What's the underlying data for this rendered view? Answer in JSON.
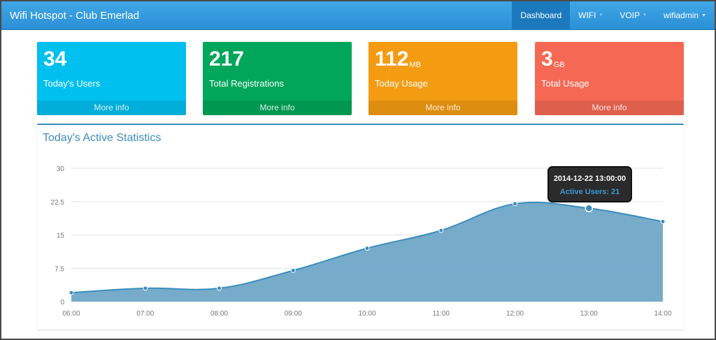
{
  "app": {
    "title": "Wifi Hotspot - Club Emerlad"
  },
  "nav": {
    "items": [
      {
        "label": "Dashboard",
        "active": true
      },
      {
        "label": "WIFI"
      },
      {
        "label": "VOIP"
      },
      {
        "label": "wifiadmin"
      }
    ]
  },
  "stats": [
    {
      "value": "34",
      "unit": "",
      "label": "Today's Users",
      "link": "More info",
      "color": "#00c0ef"
    },
    {
      "value": "217",
      "unit": "",
      "label": "Total Registrations",
      "link": "More info",
      "color": "#00a65a"
    },
    {
      "value": "112",
      "unit": "MB",
      "label": "Today Usage",
      "link": "More info",
      "color": "#f39c12"
    },
    {
      "value": "3",
      "unit": "GB",
      "label": "Total Usage",
      "link": "More info",
      "color": "#f56954"
    }
  ],
  "panel": {
    "title": "Today's Active Statistics"
  },
  "tooltip": {
    "date": "2014-12-22 13:00:00",
    "text": "Active Users: 21"
  },
  "chart_data": {
    "type": "area",
    "x": [
      "06:00",
      "07:00",
      "08:00",
      "09:00",
      "10:00",
      "11:00",
      "12:00",
      "13:00",
      "14:00"
    ],
    "series": [
      {
        "name": "Active Users",
        "values": [
          2,
          3,
          3,
          7,
          12,
          16,
          22,
          21,
          18
        ],
        "color": "#3c8dbc"
      }
    ],
    "y_ticks": [
      "0",
      "7.5",
      "15",
      "22.5",
      "30"
    ],
    "ylim": [
      0,
      30
    ],
    "grid": true,
    "highlight_index": 7
  }
}
